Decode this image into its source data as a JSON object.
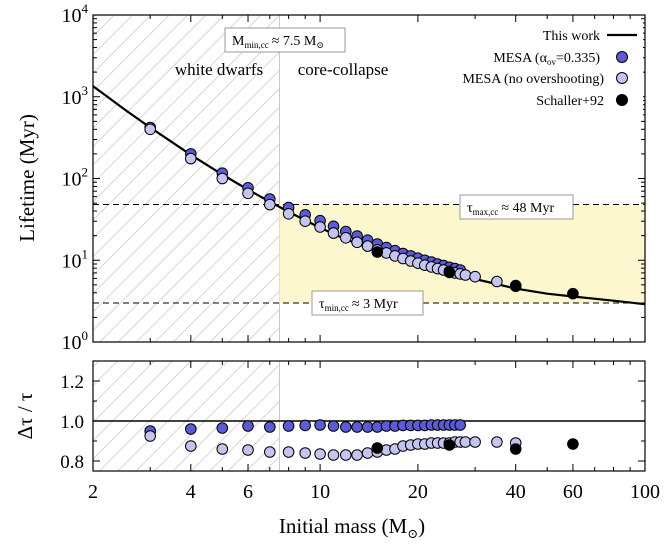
{
  "chart_data": [
    {
      "type": "line",
      "panel": "top",
      "ylabel": "Lifetime (Myr)",
      "xscale": "log",
      "yscale": "log",
      "xlim": [
        2,
        100
      ],
      "ylim": [
        1,
        10000
      ],
      "ytick_labels": [
        {
          "value": 1,
          "base": "10",
          "exp": "0"
        },
        {
          "value": 10,
          "base": "10",
          "exp": "1"
        },
        {
          "value": 100,
          "base": "10",
          "exp": "2"
        },
        {
          "value": 1000,
          "base": "10",
          "exp": "3"
        },
        {
          "value": 10000,
          "base": "10",
          "exp": "4"
        }
      ],
      "regions": {
        "white_dwarfs_label": "white dwarfs",
        "core_collapse_label": "core-collapse",
        "m_min_cc": 7.5,
        "tau_max_cc": 48,
        "tau_min_cc": 3
      },
      "annotations": {
        "mmin": {
          "main": "M",
          "sub": "min,cc",
          "rest": "≈ 7.5 M",
          "sun": "⊙"
        },
        "taumax": {
          "main": "τ",
          "sub": "max,cc",
          "rest": "≈ 48 Myr"
        },
        "taumin": {
          "main": "τ",
          "sub": "min,cc",
          "rest": "≈ 3 Myr"
        }
      },
      "legend": {
        "placement": "top-right",
        "entries": {
          "this_work": "This work",
          "mesa_ov_pre": "MESA (α",
          "mesa_ov_sub": "ov",
          "mesa_ov_post": "=0.335)",
          "mesa_noov": "MESA (no overshooting)",
          "schaller": "Schaller+92"
        }
      },
      "series": [
        {
          "name": "This work",
          "style": "line",
          "x": [
            2,
            2.5,
            3,
            4,
            5,
            6,
            7,
            8,
            10,
            12,
            15,
            20,
            25,
            30,
            40,
            50,
            60,
            80,
            100
          ],
          "y": [
            1350,
            700,
            420,
            195,
            112,
            73,
            52,
            39,
            25,
            18,
            13,
            9.0,
            7.0,
            5.9,
            4.5,
            3.9,
            3.6,
            3.2,
            2.9
          ]
        },
        {
          "name": "MESA (αov=0.335)",
          "color": "#5b5bd8",
          "x": [
            3,
            4,
            5,
            6,
            7,
            8,
            9,
            10,
            11,
            12,
            13,
            14,
            15,
            16,
            17,
            18,
            19,
            20,
            21,
            22,
            23,
            24,
            25,
            26,
            27
          ],
          "y": [
            420,
            200,
            116,
            77,
            56,
            44,
            36,
            30.5,
            26,
            22.5,
            19.8,
            17.6,
            15.8,
            14.3,
            13.1,
            12.1,
            11.3,
            10.6,
            10.0,
            9.5,
            9.0,
            8.6,
            8.2,
            7.9,
            7.6
          ]
        },
        {
          "name": "MESA (no overshooting)",
          "color": "#c4c4f0",
          "x": [
            3,
            4,
            5,
            6,
            7,
            8,
            9,
            10,
            11,
            12,
            13,
            14,
            15,
            16,
            17,
            18,
            19,
            20,
            21,
            22,
            23,
            24,
            25,
            26,
            27,
            28,
            30,
            35,
            40
          ],
          "y": [
            400,
            175,
            100,
            66,
            48,
            37,
            30,
            25.5,
            21.5,
            18.8,
            16.6,
            14.9,
            13.4,
            12.3,
            11.3,
            10.5,
            9.8,
            9.2,
            8.7,
            8.3,
            7.9,
            7.6,
            7.3,
            7.0,
            6.8,
            6.6,
            6.3,
            5.5,
            4.9
          ]
        },
        {
          "name": "Schaller+92",
          "color": "#000000",
          "x": [
            15,
            25,
            40,
            60
          ],
          "y": [
            12.6,
            7.1,
            4.8,
            3.9
          ]
        }
      ]
    },
    {
      "type": "scatter",
      "panel": "bottom",
      "ylabel": "Δτ / τ",
      "xlabel": "Initial mass (M⊙)",
      "xlabel_main": "Initial mass (M",
      "xlabel_sun": "⊙",
      "xlabel_close": ")",
      "xscale": "log",
      "xlim": [
        2,
        100
      ],
      "ylim": [
        0.75,
        1.3
      ],
      "xticks": [
        2,
        4,
        6,
        10,
        20,
        40,
        60,
        100
      ],
      "xtick_labels": [
        "2",
        "4",
        "6",
        "10",
        "20",
        "40",
        "60",
        "100"
      ],
      "yticks": [
        0.8,
        1.0,
        1.2
      ],
      "ytick_labels": [
        "0.8",
        "1.0",
        "1.2"
      ],
      "reference_line": 1.0,
      "series": [
        {
          "name": "MESA (αov=0.335)",
          "color": "#5b5bd8",
          "x": [
            3,
            4,
            5,
            6,
            7,
            8,
            9,
            10,
            11,
            12,
            13,
            14,
            15,
            16,
            17,
            18,
            19,
            20,
            21,
            22,
            23,
            24,
            25,
            26,
            27
          ],
          "y": [
            0.95,
            0.96,
            0.965,
            0.975,
            0.97,
            0.975,
            0.978,
            0.98,
            0.975,
            0.97,
            0.97,
            0.97,
            0.97,
            0.975,
            0.975,
            0.978,
            0.978,
            0.978,
            0.978,
            0.98,
            0.98,
            0.98,
            0.98,
            0.98,
            0.98
          ]
        },
        {
          "name": "MESA (no overshooting)",
          "color": "#c4c4f0",
          "x": [
            3,
            4,
            5,
            6,
            7,
            8,
            9,
            10,
            11,
            12,
            13,
            14,
            15,
            16,
            17,
            18,
            19,
            20,
            21,
            22,
            23,
            24,
            25,
            26,
            27,
            28,
            30,
            35,
            40
          ],
          "y": [
            0.925,
            0.875,
            0.86,
            0.855,
            0.845,
            0.845,
            0.84,
            0.835,
            0.83,
            0.83,
            0.83,
            0.84,
            0.845,
            0.855,
            0.86,
            0.875,
            0.88,
            0.885,
            0.885,
            0.89,
            0.89,
            0.89,
            0.89,
            0.895,
            0.895,
            0.895,
            0.895,
            0.895,
            0.89
          ]
        },
        {
          "name": "Schaller+92",
          "color": "#000000",
          "x": [
            15,
            25,
            40,
            60
          ],
          "y": [
            0.865,
            0.88,
            0.86,
            0.885
          ]
        }
      ]
    }
  ]
}
